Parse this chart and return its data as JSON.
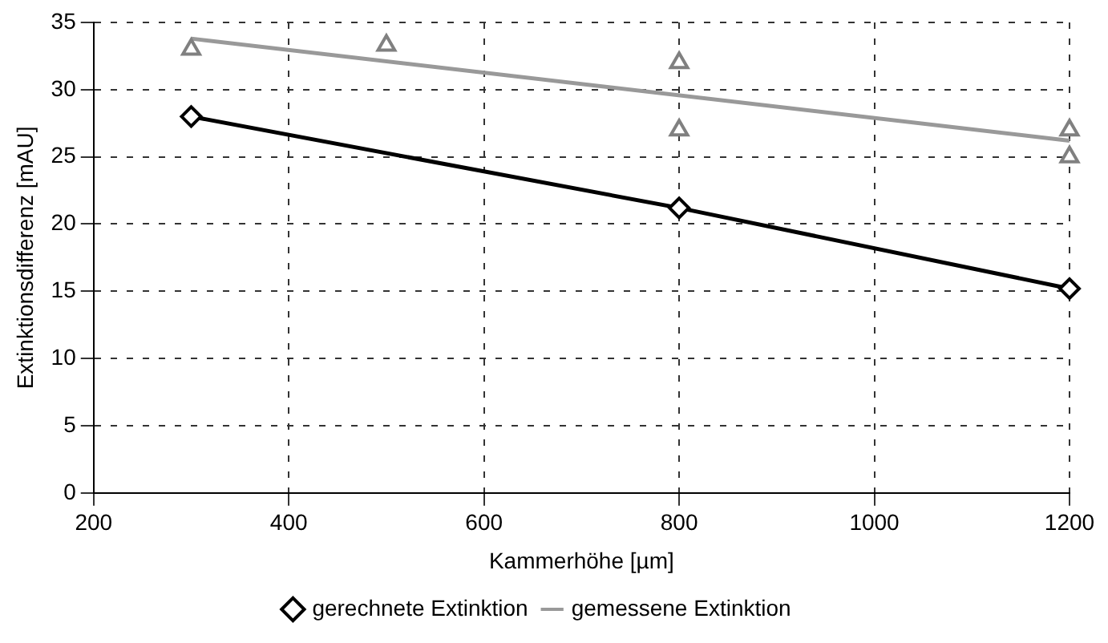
{
  "chart_data": {
    "type": "line",
    "xlabel": "Kammerhöhe [µm]",
    "ylabel": "Extinktionsdifferenz [mAU]",
    "xlim": [
      200,
      1200
    ],
    "xticks": [
      200,
      400,
      600,
      800,
      1000,
      1200
    ],
    "ylim": [
      0,
      35
    ],
    "yticks": [
      0,
      5,
      10,
      15,
      20,
      25,
      30,
      35
    ],
    "grid": true,
    "legend": "bottom",
    "series": [
      {
        "name": "gerechnete Extinktion",
        "color": "#000000",
        "marker": "diamond",
        "line_style": "solid",
        "x": [
          300,
          800,
          1200
        ],
        "values": [
          28,
          21.2,
          15.2
        ]
      },
      {
        "type": "scatter",
        "color": "#808080",
        "marker": "triangle",
        "x": [
          300,
          500,
          800,
          800,
          1200,
          1200
        ],
        "values": [
          33,
          33.3,
          32,
          27,
          27,
          25
        ]
      },
      {
        "name": "gemessene Extinktion",
        "color": "#999999",
        "marker": "none",
        "line_style": "solid",
        "x": [
          300,
          1200
        ],
        "values": [
          33.8,
          26.2
        ]
      }
    ]
  }
}
